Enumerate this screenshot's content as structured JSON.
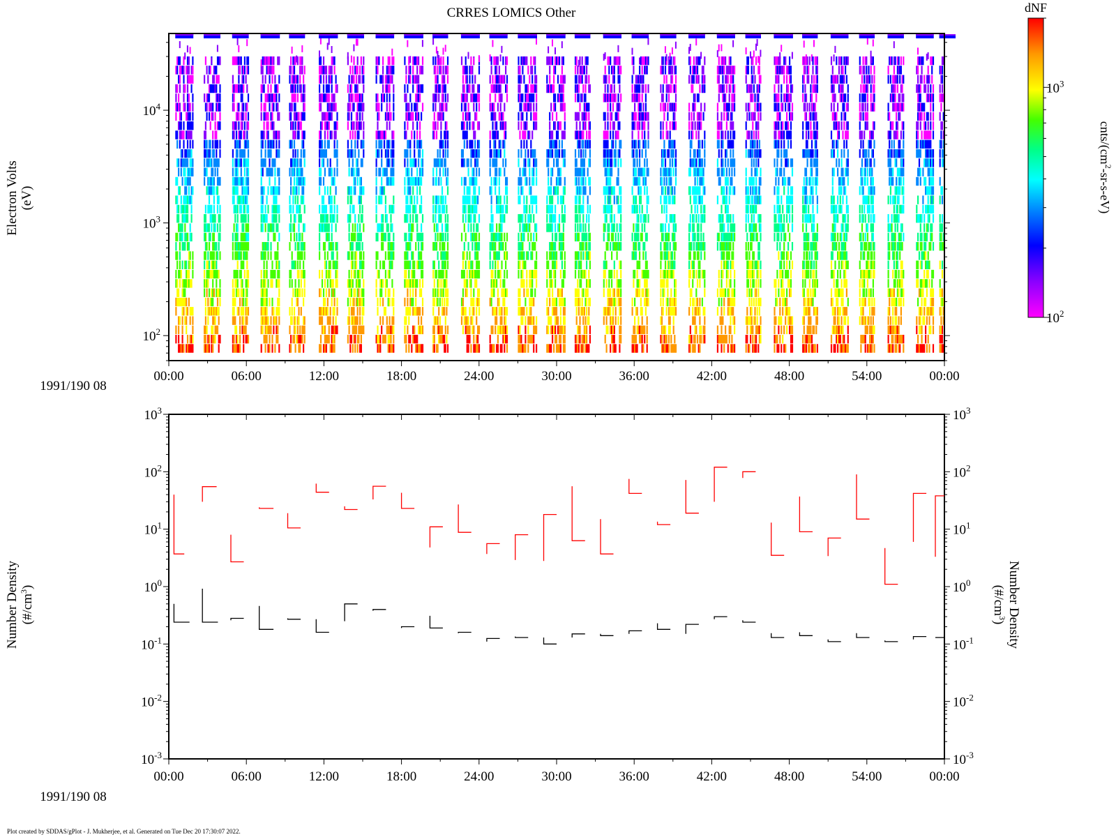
{
  "chart_data": [
    {
      "type": "heatmap",
      "title": "CRRES LOMICS Other",
      "date_label": "1991/190 08",
      "ylabel": "Electron Volts",
      "yunits": "(eV)",
      "yscale": "log",
      "ylim": [
        60,
        48000
      ],
      "y_ticks": [
        "10^2",
        "10^3",
        "10^4"
      ],
      "x_tick_labels": [
        "00:00",
        "06:00",
        "12:00",
        "18:00",
        "24:00",
        "30:00",
        "36:00",
        "42:00",
        "48:00",
        "54:00",
        "00:00"
      ],
      "x_range_minutes": [
        0,
        60
      ],
      "burst_start_minutes": [
        0.5,
        2.7,
        4.9,
        7.1,
        9.3,
        11.6,
        13.8,
        16.0,
        18.2,
        20.4,
        22.6,
        24.8,
        27.0,
        29.2,
        31.4,
        33.6,
        35.8,
        38.0,
        40.2,
        42.4,
        44.6,
        46.8,
        49.0,
        51.2,
        53.4,
        55.6,
        57.8,
        59.6
      ],
      "colorbar": {
        "label": "dNF",
        "units": "cnts/(cm^2-sr-s-eV)",
        "scale": "log",
        "range": [
          100,
          2000
        ],
        "ticks": [
          "10^2",
          "10^3"
        ],
        "colors": [
          "#ff00ff",
          "#8a00ff",
          "#0000ff",
          "#0088ff",
          "#00ffff",
          "#00ff88",
          "#44ff00",
          "#ffff00",
          "#ff9900",
          "#ff0000"
        ]
      }
    },
    {
      "type": "line",
      "ylabel": "Number Density",
      "yunits": "(#/cm^3)",
      "yscale": "log",
      "ylim": [
        0.001,
        1000
      ],
      "y_ticks": [
        "10^-3",
        "10^-2",
        "10^-1",
        "10^0",
        "10^1",
        "10^2",
        "10^3"
      ],
      "date_label": "1991/190 08",
      "x_tick_labels": [
        "00:00",
        "06:00",
        "12:00",
        "18:00",
        "24:00",
        "30:00",
        "36:00",
        "42:00",
        "48:00",
        "54:00",
        "00:00"
      ],
      "series": [
        {
          "color": "#ff0000",
          "segments": [
            {
              "x": [
                0.4,
                1.2
              ],
              "y": [
                40,
                3.7
              ]
            },
            {
              "x": [
                2.6,
                3.2,
                3.7
              ],
              "y": [
                30,
                55,
                55
              ]
            },
            {
              "x": [
                4.8,
                5.3,
                5.8
              ],
              "y": [
                8,
                2.7,
                2.7
              ]
            },
            {
              "x": [
                7.0,
                7.6,
                8.1
              ],
              "y": [
                24,
                23,
                23
              ]
            },
            {
              "x": [
                9.2,
                9.7,
                10.2
              ],
              "y": [
                19,
                10.5,
                10.5
              ]
            },
            {
              "x": [
                11.4,
                11.9,
                12.4
              ],
              "y": [
                62,
                44,
                44
              ]
            },
            {
              "x": [
                13.6,
                14.1,
                14.6
              ],
              "y": [
                25,
                22,
                22
              ]
            },
            {
              "x": [
                15.8,
                16.3,
                16.8
              ],
              "y": [
                33,
                56,
                56
              ]
            },
            {
              "x": [
                18.0,
                18.5,
                19.0
              ],
              "y": [
                43,
                23,
                23
              ]
            },
            {
              "x": [
                20.2,
                20.7,
                21.2
              ],
              "y": [
                4.8,
                11,
                11
              ]
            },
            {
              "x": [
                22.4,
                22.9,
                23.4
              ],
              "y": [
                27,
                8.8,
                8.8
              ]
            },
            {
              "x": [
                24.6,
                25.1,
                25.6
              ],
              "y": [
                3.7,
                5.6,
                5.6
              ]
            },
            {
              "x": [
                26.8,
                27.3,
                27.8
              ],
              "y": [
                2.9,
                8.0,
                8.0
              ]
            },
            {
              "x": [
                29.0,
                29.5,
                30.0
              ],
              "y": [
                2.8,
                18,
                18
              ]
            },
            {
              "x": [
                31.2,
                31.7,
                32.2
              ],
              "y": [
                56,
                6.3,
                6.3
              ]
            },
            {
              "x": [
                33.4,
                33.9,
                34.4
              ],
              "y": [
                15,
                3.7,
                3.7
              ]
            },
            {
              "x": [
                35.6,
                36.1,
                36.6
              ],
              "y": [
                75,
                42,
                42
              ]
            },
            {
              "x": [
                37.8,
                38.3,
                38.8
              ],
              "y": [
                13.5,
                12,
                12
              ]
            },
            {
              "x": [
                40.0,
                40.5,
                41.0
              ],
              "y": [
                72,
                19,
                19
              ]
            },
            {
              "x": [
                42.2,
                42.7,
                43.2
              ],
              "y": [
                30,
                120,
                120
              ]
            },
            {
              "x": [
                44.4,
                44.9,
                45.4
              ],
              "y": [
                78,
                100,
                100
              ]
            },
            {
              "x": [
                46.6,
                47.1,
                47.6
              ],
              "y": [
                13,
                3.5,
                3.5
              ]
            },
            {
              "x": [
                48.8,
                49.3,
                49.8
              ],
              "y": [
                37,
                9.0,
                9.0
              ]
            },
            {
              "x": [
                51.0,
                51.5,
                52.0
              ],
              "y": [
                3.4,
                7.0,
                7.0
              ]
            },
            {
              "x": [
                53.2,
                53.7,
                54.2
              ],
              "y": [
                90,
                15,
                15
              ]
            },
            {
              "x": [
                55.4,
                55.9,
                56.4
              ],
              "y": [
                4.7,
                1.1,
                1.1
              ]
            },
            {
              "x": [
                57.6,
                58.1,
                58.6
              ],
              "y": [
                6,
                42,
                42
              ]
            },
            {
              "x": [
                59.3,
                59.8,
                60.0
              ],
              "y": [
                3.3,
                38,
                38
              ]
            }
          ]
        },
        {
          "color": "#000000",
          "segments": [
            {
              "x": [
                0.4,
                1.0,
                1.6
              ],
              "y": [
                0.5,
                0.24,
                0.24
              ]
            },
            {
              "x": [
                2.6,
                3.2,
                3.8
              ],
              "y": [
                0.92,
                0.24,
                0.24
              ]
            },
            {
              "x": [
                4.8,
                5.3,
                5.8
              ],
              "y": [
                0.26,
                0.28,
                0.28
              ]
            },
            {
              "x": [
                7.0,
                7.6,
                8.1
              ],
              "y": [
                0.46,
                0.18,
                0.18
              ]
            },
            {
              "x": [
                9.2,
                9.7,
                10.2
              ],
              "y": [
                0.28,
                0.27,
                0.27
              ]
            },
            {
              "x": [
                11.4,
                11.9,
                12.4
              ],
              "y": [
                0.27,
                0.16,
                0.16
              ]
            },
            {
              "x": [
                13.6,
                14.1,
                14.6
              ],
              "y": [
                0.25,
                0.5,
                0.5
              ]
            },
            {
              "x": [
                15.8,
                16.3,
                16.8
              ],
              "y": [
                0.38,
                0.4,
                0.4
              ]
            },
            {
              "x": [
                18.0,
                18.5,
                19.0
              ],
              "y": [
                0.19,
                0.2,
                0.2
              ]
            },
            {
              "x": [
                20.2,
                20.7,
                21.2
              ],
              "y": [
                0.31,
                0.19,
                0.19
              ]
            },
            {
              "x": [
                22.4,
                22.9,
                23.4
              ],
              "y": [
                0.155,
                0.16,
                0.16
              ]
            },
            {
              "x": [
                24.6,
                25.1,
                25.6
              ],
              "y": [
                0.11,
                0.125,
                0.125
              ]
            },
            {
              "x": [
                26.8,
                27.3,
                27.8
              ],
              "y": [
                0.135,
                0.13,
                0.13
              ]
            },
            {
              "x": [
                29.0,
                29.5,
                30.0
              ],
              "y": [
                0.13,
                0.1,
                0.1
              ]
            },
            {
              "x": [
                31.2,
                31.7,
                32.2
              ],
              "y": [
                0.13,
                0.15,
                0.15
              ]
            },
            {
              "x": [
                33.4,
                33.9,
                34.4
              ],
              "y": [
                0.15,
                0.14,
                0.14
              ]
            },
            {
              "x": [
                35.6,
                36.1,
                36.6
              ],
              "y": [
                0.15,
                0.17,
                0.17
              ]
            },
            {
              "x": [
                37.8,
                38.3,
                38.8
              ],
              "y": [
                0.23,
                0.18,
                0.18
              ]
            },
            {
              "x": [
                40.0,
                40.5,
                41.0
              ],
              "y": [
                0.15,
                0.22,
                0.22
              ]
            },
            {
              "x": [
                42.2,
                42.7,
                43.2
              ],
              "y": [
                0.27,
                0.3,
                0.3
              ]
            },
            {
              "x": [
                44.4,
                44.9,
                45.4
              ],
              "y": [
                0.26,
                0.24,
                0.24
              ]
            },
            {
              "x": [
                46.6,
                47.1,
                47.6
              ],
              "y": [
                0.155,
                0.13,
                0.13
              ]
            },
            {
              "x": [
                48.8,
                49.3,
                49.8
              ],
              "y": [
                0.16,
                0.14,
                0.14
              ]
            },
            {
              "x": [
                51.0,
                51.5,
                52.0
              ],
              "y": [
                0.12,
                0.11,
                0.11
              ]
            },
            {
              "x": [
                53.2,
                53.7,
                54.2
              ],
              "y": [
                0.155,
                0.13,
                0.13
              ]
            },
            {
              "x": [
                55.4,
                55.9,
                56.4
              ],
              "y": [
                0.115,
                0.11,
                0.11
              ]
            },
            {
              "x": [
                57.6,
                58.1,
                58.6
              ],
              "y": [
                0.12,
                0.135,
                0.135
              ]
            },
            {
              "x": [
                59.3,
                59.8,
                60.0
              ],
              "y": [
                0.13,
                0.13,
                0.13
              ]
            }
          ]
        }
      ]
    }
  ],
  "footer": "Plot created by SDDAS/gPlot - J. Mukherjee, et al.  Generated on Tue Dec 20 17:30:07 2022."
}
